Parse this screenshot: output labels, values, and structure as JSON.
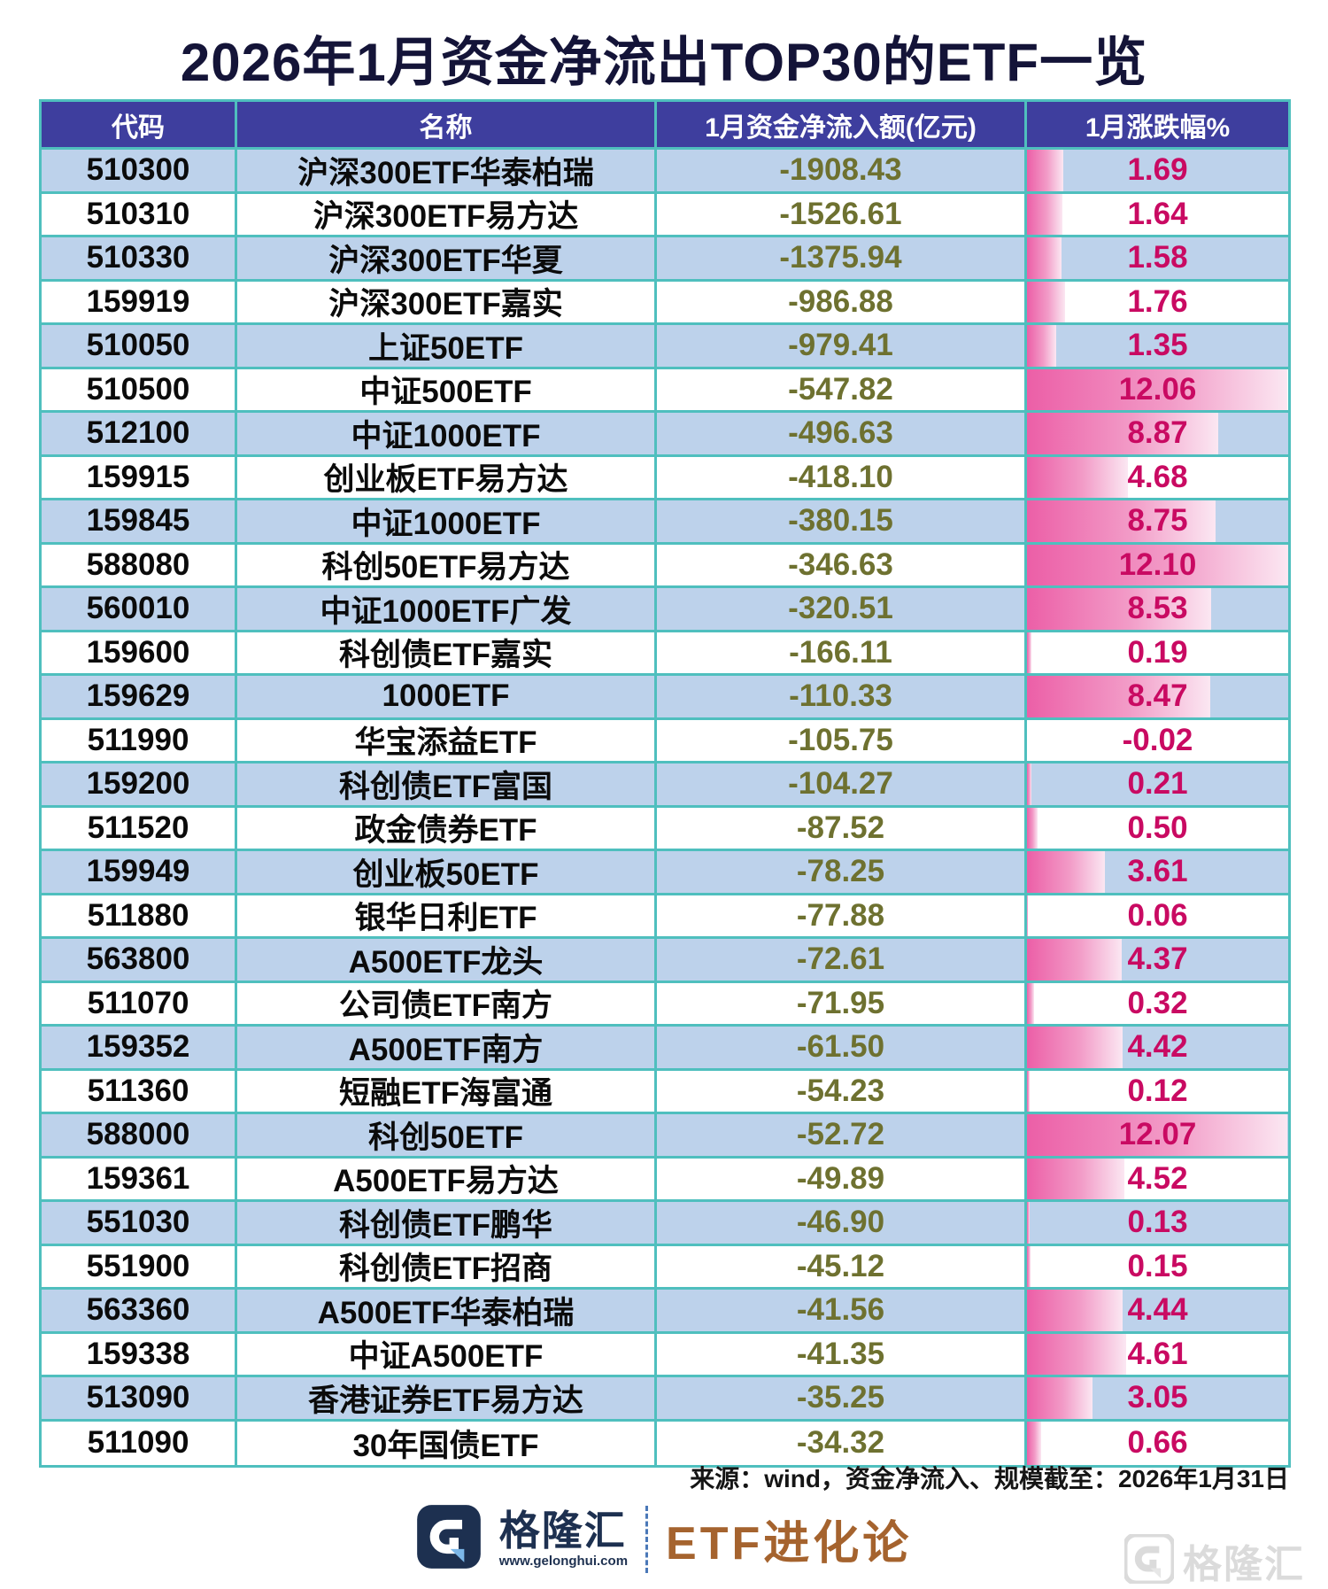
{
  "title": "2026年1月资金净流出TOP30的ETF一览",
  "chart_data": {
    "type": "table",
    "title": "2026年1月资金净流出TOP30的ETF一览",
    "columns": [
      "代码",
      "名称",
      "1月资金净流入额(亿元)",
      "1月涨跌幅%"
    ],
    "bar_metric": "1月涨跌幅%",
    "bar_max": 12.1,
    "rows": [
      {
        "code": "510300",
        "name": "沪深300ETF华泰柏瑞",
        "flow": "-1908.43",
        "change": "1.69"
      },
      {
        "code": "510310",
        "name": "沪深300ETF易方达",
        "flow": "-1526.61",
        "change": "1.64"
      },
      {
        "code": "510330",
        "name": "沪深300ETF华夏",
        "flow": "-1375.94",
        "change": "1.58"
      },
      {
        "code": "159919",
        "name": "沪深300ETF嘉实",
        "flow": "-986.88",
        "change": "1.76"
      },
      {
        "code": "510050",
        "name": "上证50ETF",
        "flow": "-979.41",
        "change": "1.35"
      },
      {
        "code": "510500",
        "name": "中证500ETF",
        "flow": "-547.82",
        "change": "12.06"
      },
      {
        "code": "512100",
        "name": "中证1000ETF",
        "flow": "-496.63",
        "change": "8.87"
      },
      {
        "code": "159915",
        "name": "创业板ETF易方达",
        "flow": "-418.10",
        "change": "4.68"
      },
      {
        "code": "159845",
        "name": "中证1000ETF",
        "flow": "-380.15",
        "change": "8.75"
      },
      {
        "code": "588080",
        "name": "科创50ETF易方达",
        "flow": "-346.63",
        "change": "12.10"
      },
      {
        "code": "560010",
        "name": "中证1000ETF广发",
        "flow": "-320.51",
        "change": "8.53"
      },
      {
        "code": "159600",
        "name": "科创债ETF嘉实",
        "flow": "-166.11",
        "change": "0.19"
      },
      {
        "code": "159629",
        "name": "1000ETF",
        "flow": "-110.33",
        "change": "8.47"
      },
      {
        "code": "511990",
        "name": "华宝添益ETF",
        "flow": "-105.75",
        "change": "-0.02"
      },
      {
        "code": "159200",
        "name": "科创债ETF富国",
        "flow": "-104.27",
        "change": "0.21"
      },
      {
        "code": "511520",
        "name": "政金债券ETF",
        "flow": "-87.52",
        "change": "0.50"
      },
      {
        "code": "159949",
        "name": "创业板50ETF",
        "flow": "-78.25",
        "change": "3.61"
      },
      {
        "code": "511880",
        "name": "银华日利ETF",
        "flow": "-77.88",
        "change": "0.06"
      },
      {
        "code": "563800",
        "name": "A500ETF龙头",
        "flow": "-72.61",
        "change": "4.37"
      },
      {
        "code": "511070",
        "name": "公司债ETF南方",
        "flow": "-71.95",
        "change": "0.32"
      },
      {
        "code": "159352",
        "name": "A500ETF南方",
        "flow": "-61.50",
        "change": "4.42"
      },
      {
        "code": "511360",
        "name": "短融ETF海富通",
        "flow": "-54.23",
        "change": "0.12"
      },
      {
        "code": "588000",
        "name": "科创50ETF",
        "flow": "-52.72",
        "change": "12.07"
      },
      {
        "code": "159361",
        "name": "A500ETF易方达",
        "flow": "-49.89",
        "change": "4.52"
      },
      {
        "code": "551030",
        "name": "科创债ETF鹏华",
        "flow": "-46.90",
        "change": "0.13"
      },
      {
        "code": "551900",
        "name": "科创债ETF招商",
        "flow": "-45.12",
        "change": "0.15"
      },
      {
        "code": "563360",
        "name": "A500ETF华泰柏瑞",
        "flow": "-41.56",
        "change": "4.44"
      },
      {
        "code": "159338",
        "name": "中证A500ETF",
        "flow": "-41.35",
        "change": "4.61"
      },
      {
        "code": "513090",
        "name": "香港证券ETF易方达",
        "flow": "-35.25",
        "change": "3.05"
      },
      {
        "code": "511090",
        "name": "30年国债ETF",
        "flow": "-34.32",
        "change": "0.66"
      }
    ]
  },
  "footer": {
    "source": "来源：wind，资金净流入、规模截至：2026年1月31日",
    "brand": "格隆汇",
    "brand_url": "www.gelonghui.com",
    "sub_brand": "ETF进化论",
    "watermark": "格隆汇"
  },
  "colors": {
    "header_bg": "#3E3E9E",
    "row_alt_bg": "#BDD2EB",
    "border_teal": "#4FBFBE",
    "flow_text": "#6E7130",
    "change_text": "#C90A62",
    "bar_gradient_start": "#EC5FA7",
    "bar_gradient_end": "#FBE7F2",
    "title_text": "#141438",
    "brand_navy": "#1D3050",
    "sub_brand_bronze": "#A5632E"
  }
}
